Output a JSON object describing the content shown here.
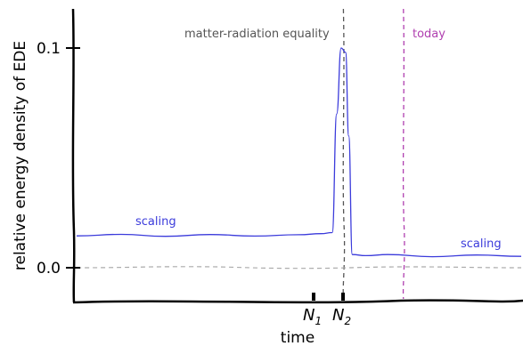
{
  "chart_data": {
    "type": "line",
    "title": "",
    "xlabel": "time",
    "ylabel": "relative energy density of EDE",
    "yticks": [
      {
        "value": 0.0,
        "label": "0.0"
      },
      {
        "value": 0.1,
        "label": "0.1"
      }
    ],
    "xticks": [
      {
        "name": "N",
        "sub": "1"
      },
      {
        "name": "N",
        "sub": "2"
      }
    ],
    "ylim": [
      -0.015,
      0.12
    ],
    "series": [
      {
        "name": "",
        "color": "#3b3bdb",
        "points_note": "",
        "x": [
          0.0,
          0.1,
          0.2,
          0.3,
          0.4,
          0.5,
          0.55,
          0.575,
          0.585,
          0.595,
          0.605,
          0.612,
          0.62,
          0.65,
          0.7,
          0.8,
          0.9,
          1.0
        ],
        "y": [
          0.0145,
          0.0152,
          0.0143,
          0.0151,
          0.0144,
          0.015,
          0.0155,
          0.016,
          0.07,
          0.1,
          0.098,
          0.06,
          0.006,
          0.0055,
          0.006,
          0.005,
          0.0058,
          0.0052
        ]
      },
      {
        "name": "",
        "color": "#aaaaaa",
        "dashed": true,
        "x": [
          0.0,
          0.25,
          0.5,
          0.75,
          1.0
        ],
        "y": [
          0.0,
          0.0005,
          -0.0003,
          0.0004,
          0.0
        ]
      }
    ],
    "annotations": [
      {
        "text": "scaling",
        "color": "#3b3bdb"
      },
      {
        "text": "scaling",
        "color": "#3b3bdb"
      },
      {
        "text": "matter-radiation equality",
        "color": "#555555"
      },
      {
        "text": "today",
        "color": "#b040b0"
      }
    ],
    "vlines": [
      {
        "x": 0.6,
        "color": "#555555",
        "dashed": true
      },
      {
        "x": 0.735,
        "color": "#b040b0",
        "dashed": true
      }
    ]
  }
}
